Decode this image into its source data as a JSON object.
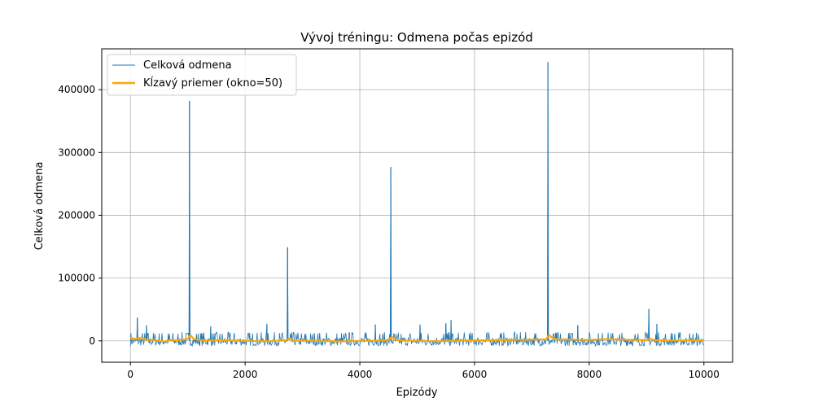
{
  "chart_data": {
    "type": "line",
    "title": "Vývoj tréningu: Odmena počas epizód",
    "xlabel": "Epizódy",
    "ylabel": "Celková odmena",
    "xlim": [
      -500,
      10500
    ],
    "ylim": [
      -34000,
      465000
    ],
    "x_ticks": [
      0,
      2000,
      4000,
      6000,
      8000,
      10000
    ],
    "x_tick_labels": [
      "0",
      "2000",
      "4000",
      "6000",
      "8000",
      "10000"
    ],
    "y_ticks": [
      0,
      100000,
      200000,
      300000,
      400000
    ],
    "y_tick_labels": [
      "0",
      "100000",
      "200000",
      "300000",
      "400000"
    ],
    "grid": true,
    "legend_position": "upper-left",
    "x_range": [
      0,
      10000
    ],
    "series": [
      {
        "name": "Celková odmena",
        "color": "#1f77b4",
        "style": "thin-line",
        "baseline_range": [
          -8000,
          12000
        ],
        "spikes": [
          {
            "x": 120,
            "y": 37000
          },
          {
            "x": 280,
            "y": 25000
          },
          {
            "x": 1030,
            "y": 382000
          },
          {
            "x": 1400,
            "y": 23000
          },
          {
            "x": 2380,
            "y": 27000
          },
          {
            "x": 2740,
            "y": 149000
          },
          {
            "x": 4270,
            "y": 26000
          },
          {
            "x": 4540,
            "y": 277000
          },
          {
            "x": 5050,
            "y": 26000
          },
          {
            "x": 5500,
            "y": 28000
          },
          {
            "x": 5590,
            "y": 33000
          },
          {
            "x": 7280,
            "y": 444000
          },
          {
            "x": 7800,
            "y": 25000
          },
          {
            "x": 9040,
            "y": 51000
          },
          {
            "x": 9180,
            "y": 27000
          }
        ]
      },
      {
        "name": "Kĺzavý priemer (okno=50)",
        "color": "#ffa500",
        "style": "thick-line",
        "points": [
          [
            0,
            5000
          ],
          [
            100,
            3000
          ],
          [
            200,
            5500
          ],
          [
            300,
            1000
          ],
          [
            400,
            2000
          ],
          [
            500,
            0
          ],
          [
            600,
            -1000
          ],
          [
            700,
            1500
          ],
          [
            800,
            500
          ],
          [
            900,
            2000
          ],
          [
            1000,
            3000
          ],
          [
            1050,
            9000
          ],
          [
            1100,
            3000
          ],
          [
            1300,
            500
          ],
          [
            1600,
            1000
          ],
          [
            2000,
            0
          ],
          [
            2400,
            -500
          ],
          [
            2700,
            1000
          ],
          [
            2780,
            3500
          ],
          [
            2850,
            0
          ],
          [
            3200,
            500
          ],
          [
            3600,
            -1000
          ],
          [
            4000,
            0
          ],
          [
            4400,
            500
          ],
          [
            4500,
            1500
          ],
          [
            4560,
            6500
          ],
          [
            4650,
            1000
          ],
          [
            5000,
            0
          ],
          [
            5400,
            -500
          ],
          [
            5800,
            500
          ],
          [
            6200,
            1000
          ],
          [
            6600,
            1500
          ],
          [
            7000,
            2000
          ],
          [
            7250,
            2500
          ],
          [
            7300,
            9500
          ],
          [
            7380,
            3000
          ],
          [
            7700,
            2000
          ],
          [
            8000,
            1500
          ],
          [
            8300,
            3000
          ],
          [
            8600,
            2000
          ],
          [
            9000,
            1000
          ],
          [
            9060,
            3500
          ],
          [
            9150,
            1000
          ],
          [
            9500,
            500
          ],
          [
            10000,
            1000
          ]
        ]
      }
    ]
  }
}
